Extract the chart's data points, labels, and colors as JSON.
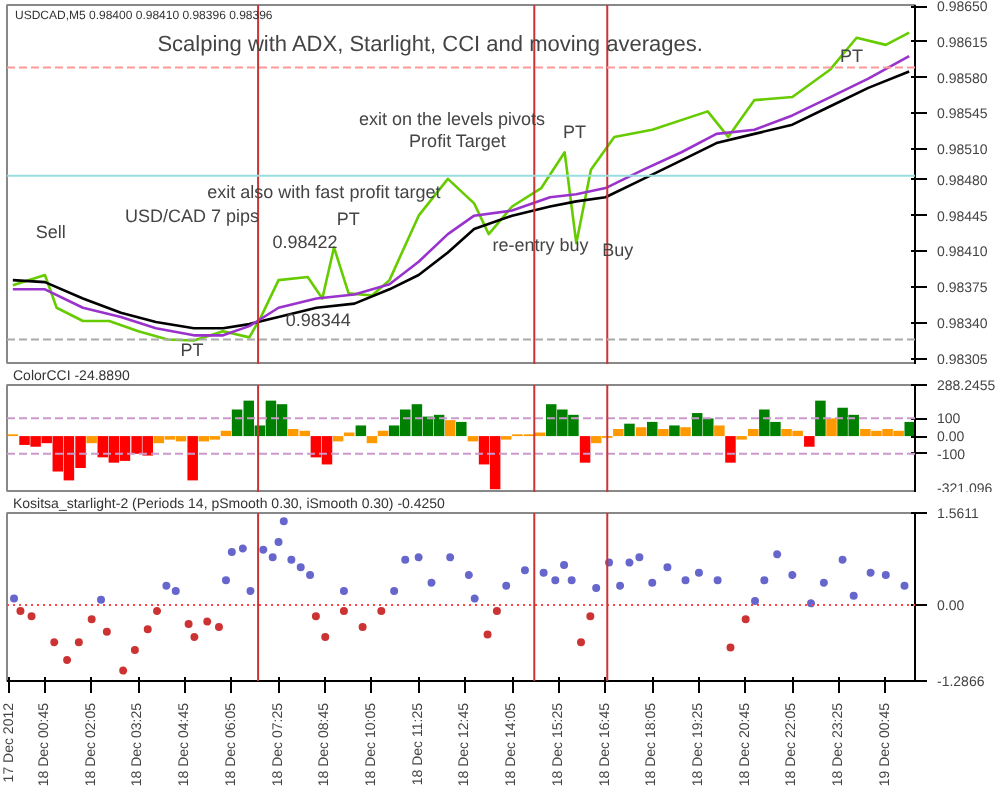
{
  "chart_data": [
    {
      "type": "line",
      "title": "Scalping with ADX, Starlight,  CCI and moving averages.",
      "xlim": [
        "2012-12-17T23:40",
        "2012-12-19T01:35"
      ],
      "ylim": [
        0.98299,
        0.98651
      ],
      "yticks": [
        {
          "value": 0.9865,
          "label": "0.98650"
        },
        0.98615,
        {
          "value": 0.9858,
          "label": "0.98580"
        },
        0.98545,
        {
          "value": 0.9851,
          "label": "0.98510"
        },
        {
          "value": 0.9848,
          "label": "0.98480"
        },
        0.98445,
        {
          "value": 0.9841,
          "label": "0.98410"
        },
        0.98375,
        {
          "value": 0.9834,
          "label": "0.98340"
        },
        0.98305
      ],
      "tick_labels": "y",
      "series": [
        {
          "color": "#66cc00",
          "x": [
            "2012-12-17T23:50",
            "2012-12-18T00:45",
            "2012-12-18T01:05",
            "2012-12-18T01:50",
            "2012-12-18T02:35",
            "2012-12-18T03:25",
            "2012-12-18T04:15",
            "2012-12-18T05:00",
            "2012-12-18T05:50",
            "2012-12-18T06:35",
            "2012-12-18T06:55",
            "2012-12-18T07:25",
            "2012-12-18T08:15",
            "2012-12-18T08:40",
            "2012-12-18T09:00",
            "2012-12-18T09:25",
            "2012-12-18T10:05",
            "2012-12-18T10:35",
            "2012-12-18T11:25",
            "2012-12-18T12:15",
            "2012-12-18T13:00",
            "2012-12-18T13:25",
            "2012-12-18T14:05",
            "2012-12-18T14:55",
            "2012-12-18T15:35",
            "2012-12-18T15:55",
            "2012-12-18T16:20",
            "2012-12-18T17:00",
            "2012-12-18T18:05",
            "2012-12-18T19:40",
            "2012-12-18T20:15",
            "2012-12-18T21:00",
            "2012-12-18T22:05",
            "2012-12-18T23:10",
            "2012-12-18T23:55",
            "2012-12-19T00:45",
            "2012-12-19T01:25"
          ],
          "values": [
            0.98377,
            0.98387,
            0.98355,
            0.98342,
            0.98342,
            0.98332,
            0.98324,
            0.98323,
            0.98332,
            0.98326,
            0.98346,
            0.98382,
            0.98385,
            0.98364,
            0.98414,
            0.98369,
            0.98367,
            0.98382,
            0.98445,
            0.98481,
            0.98457,
            0.98427,
            0.98454,
            0.98472,
            0.98507,
            0.98418,
            0.9849,
            0.98522,
            0.98529,
            0.98547,
            0.98522,
            0.98558,
            0.98561,
            0.98588,
            0.98619,
            0.98612,
            0.98624
          ]
        },
        {
          "color": "#000000",
          "x": [
            "2012-12-17T23:50",
            "2012-12-18T00:45",
            "2012-12-18T01:50",
            "2012-12-18T02:55",
            "2012-12-18T03:55",
            "2012-12-18T05:00",
            "2012-12-18T05:50",
            "2012-12-18T06:35",
            "2012-12-18T07:25",
            "2012-12-18T08:30",
            "2012-12-18T09:35",
            "2012-12-18T10:35",
            "2012-12-18T11:25",
            "2012-12-18T12:15",
            "2012-12-18T13:00",
            "2012-12-18T14:05",
            "2012-12-18T15:10",
            "2012-12-18T15:55",
            "2012-12-18T16:45",
            "2012-12-18T17:50",
            "2012-12-18T18:55",
            "2012-12-18T19:55",
            "2012-12-18T21:00",
            "2012-12-18T22:05",
            "2012-12-18T23:10",
            "2012-12-19T00:15",
            "2012-12-19T01:25"
          ],
          "values": [
            0.98382,
            0.9838,
            0.98364,
            0.9835,
            0.98341,
            0.98335,
            0.98335,
            0.98339,
            0.98346,
            0.98355,
            0.98359,
            0.98373,
            0.98387,
            0.98409,
            0.98432,
            0.98445,
            0.98454,
            0.98459,
            0.98463,
            0.98481,
            0.98499,
            0.98516,
            0.98525,
            0.98534,
            0.98552,
            0.9857,
            0.98586
          ]
        },
        {
          "color": "#9933cc",
          "x": [
            "2012-12-17T23:50",
            "2012-12-18T00:45",
            "2012-12-18T01:50",
            "2012-12-18T02:55",
            "2012-12-18T03:55",
            "2012-12-18T05:00",
            "2012-12-18T05:50",
            "2012-12-18T06:35",
            "2012-12-18T07:25",
            "2012-12-18T08:30",
            "2012-12-18T09:35",
            "2012-12-18T10:35",
            "2012-12-18T11:25",
            "2012-12-18T12:15",
            "2012-12-18T13:00",
            "2012-12-18T14:05",
            "2012-12-18T15:10",
            "2012-12-18T15:55",
            "2012-12-18T16:45",
            "2012-12-18T17:50",
            "2012-12-18T18:55",
            "2012-12-18T19:55",
            "2012-12-18T21:00",
            "2012-12-18T22:05",
            "2012-12-18T23:10",
            "2012-12-19T00:15",
            "2012-12-19T01:25"
          ],
          "values": [
            0.98373,
            0.98373,
            0.98355,
            0.98346,
            0.98335,
            0.98328,
            0.98328,
            0.98337,
            0.98355,
            0.98364,
            0.98368,
            0.98378,
            0.984,
            0.98427,
            0.98445,
            0.9845,
            0.98463,
            0.98466,
            0.98472,
            0.9849,
            0.98507,
            0.98525,
            0.98529,
            0.98543,
            0.98561,
            0.98579,
            0.98601
          ]
        }
      ],
      "ref_lines": [
        {
          "axis": "x",
          "value": "2012-12-18T06:50",
          "color": "#cc3333"
        },
        {
          "axis": "x",
          "value": "2012-12-18T14:43",
          "color": "#cc3333"
        },
        {
          "axis": "x",
          "value": "2012-12-18T16:48",
          "color": "#cc3333"
        },
        {
          "axis": "y",
          "value": 0.9859,
          "color": "#ff9999",
          "line_style": "dashed"
        },
        {
          "axis": "y",
          "value": 0.98484,
          "color": "#99dddd"
        },
        {
          "axis": "y",
          "value": 0.98324,
          "color": "#aaaaaa",
          "line_style": "dashed"
        }
      ],
      "annotations": [
        "USDCAD,M5 0.98400 0.98410 0.98396 0.98396",
        "Sell",
        "PT",
        "USD/CAD 7 pips",
        "0.98422",
        "0.98344",
        "PT",
        "exit also with fast profit target",
        "exit on the levels pivots",
        "Profit Target",
        "PT",
        "re-entry buy",
        "Buy",
        "PT"
      ]
    },
    {
      "type": "bar",
      "title": "ColorCCI -24.8890",
      "xlim": [
        "2012-12-17T23:40",
        "2012-12-19T01:35"
      ],
      "ylim": [
        -321.096,
        288.2455
      ],
      "yticks": [
        288.2455,
        100,
        {
          "value": 0,
          "label": "0.00"
        },
        -100,
        -321.096
      ],
      "tick_labels": "y",
      "x": [
        "2012-12-17T23:50",
        "2012-12-18T00:10",
        "2012-12-18T00:29",
        "2012-12-18T00:48",
        "2012-12-18T01:07",
        "2012-12-18T01:26",
        "2012-12-18T01:46",
        "2012-12-18T02:05",
        "2012-12-18T02:24",
        "2012-12-18T02:43",
        "2012-12-18T03:02",
        "2012-12-18T03:22",
        "2012-12-18T03:41",
        "2012-12-18T04:00",
        "2012-12-18T04:19",
        "2012-12-18T04:38",
        "2012-12-18T04:58",
        "2012-12-18T05:17",
        "2012-12-18T05:36",
        "2012-12-18T05:55",
        "2012-12-18T06:14",
        "2012-12-18T06:34",
        "2012-12-18T06:53",
        "2012-12-18T07:12",
        "2012-12-18T07:31",
        "2012-12-18T07:50",
        "2012-12-18T08:10",
        "2012-12-18T08:29",
        "2012-12-18T08:48",
        "2012-12-18T09:07",
        "2012-12-18T09:26",
        "2012-12-18T09:46",
        "2012-12-18T10:05",
        "2012-12-18T10:24",
        "2012-12-18T10:43",
        "2012-12-18T11:02",
        "2012-12-18T11:22",
        "2012-12-18T11:41",
        "2012-12-18T12:00",
        "2012-12-18T12:19",
        "2012-12-18T12:38",
        "2012-12-18T12:58",
        "2012-12-18T13:17",
        "2012-12-18T13:36",
        "2012-12-18T13:55",
        "2012-12-18T14:14",
        "2012-12-18T14:34",
        "2012-12-18T14:53",
        "2012-12-18T15:12",
        "2012-12-18T15:31",
        "2012-12-18T15:50",
        "2012-12-18T16:10",
        "2012-12-18T16:29",
        "2012-12-18T16:48",
        "2012-12-18T17:07",
        "2012-12-18T17:26",
        "2012-12-18T17:46",
        "2012-12-18T18:05",
        "2012-12-18T18:24",
        "2012-12-18T18:43",
        "2012-12-18T19:02",
        "2012-12-18T19:22",
        "2012-12-18T19:41",
        "2012-12-18T20:00",
        "2012-12-18T20:19",
        "2012-12-18T20:38",
        "2012-12-18T20:58",
        "2012-12-18T21:17",
        "2012-12-18T21:36",
        "2012-12-18T21:55",
        "2012-12-18T22:14",
        "2012-12-18T22:34",
        "2012-12-18T22:53",
        "2012-12-18T23:12",
        "2012-12-18T23:31",
        "2012-12-18T23:50",
        "2012-12-19T00:10",
        "2012-12-19T00:29",
        "2012-12-19T00:48",
        "2012-12-19T01:07",
        "2012-12-19T01:26"
      ],
      "values": [
        10,
        -50,
        -60,
        -40,
        -200,
        -250,
        -180,
        -40,
        -120,
        -150,
        -140,
        -100,
        -110,
        -40,
        -20,
        -30,
        -250,
        -30,
        -20,
        30,
        150,
        200,
        60,
        200,
        180,
        40,
        30,
        -120,
        -160,
        -30,
        20,
        60,
        -40,
        30,
        60,
        150,
        180,
        110,
        120,
        90,
        80,
        -30,
        -160,
        -300,
        -20,
        10,
        10,
        20,
        180,
        150,
        120,
        -150,
        -40,
        -10,
        40,
        70,
        50,
        80,
        40,
        60,
        50,
        130,
        100,
        60,
        -150,
        -20,
        40,
        150,
        80,
        40,
        30,
        -60,
        200,
        100,
        160,
        120,
        40,
        30,
        40,
        30,
        80
      ],
      "colors": [
        "#ff9900",
        "#ff0000",
        "#ff0000",
        "#ff0000",
        "#ff0000",
        "#ff0000",
        "#ff0000",
        "#ff9900",
        "#ff0000",
        "#ff0000",
        "#ff0000",
        "#ff0000",
        "#ff0000",
        "#ff9900",
        "#ff9900",
        "#ff9900",
        "#ff0000",
        "#ff9900",
        "#ff9900",
        "#ff9900",
        "#008000",
        "#008000",
        "#008000",
        "#008000",
        "#008000",
        "#ff9900",
        "#ff9900",
        "#ff0000",
        "#ff0000",
        "#ff9900",
        "#ff9900",
        "#008000",
        "#ff9900",
        "#ff9900",
        "#008000",
        "#008000",
        "#008000",
        "#008000",
        "#008000",
        "#ff9900",
        "#008000",
        "#ff9900",
        "#ff0000",
        "#ff0000",
        "#ff9900",
        "#ff9900",
        "#ff9900",
        "#ff9900",
        "#008000",
        "#008000",
        "#008000",
        "#ff0000",
        "#ff9900",
        "#ff9900",
        "#ff9900",
        "#008000",
        "#ff9900",
        "#008000",
        "#ff9900",
        "#008000",
        "#ff9900",
        "#008000",
        "#008000",
        "#ff9900",
        "#ff0000",
        "#ff9900",
        "#ff9900",
        "#008000",
        "#008000",
        "#ff9900",
        "#ff9900",
        "#ff0000",
        "#008000",
        "#ff9900",
        "#008000",
        "#008000",
        "#ff9900",
        "#ff9900",
        "#ff9900",
        "#ff9900",
        "#008000"
      ],
      "ref_lines": [
        {
          "axis": "y",
          "value": 100,
          "color": "#cc99cc",
          "line_style": "dashed"
        },
        {
          "axis": "y",
          "value": -100,
          "color": "#cc99cc",
          "line_style": "dashed"
        },
        {
          "axis": "x",
          "value": "2012-12-18T06:50",
          "color": "#cc3333"
        },
        {
          "axis": "x",
          "value": "2012-12-18T14:43",
          "color": "#cc3333"
        },
        {
          "axis": "x",
          "value": "2012-12-18T16:48",
          "color": "#cc3333"
        }
      ]
    },
    {
      "type": "scatter",
      "title": "Kositsa_starlight-2 (Periods 14, pSmooth 0.30, iSmooth 0.30) -0.4250",
      "marker": "circle",
      "xlim": [
        "2012-12-17T23:40",
        "2012-12-19T01:35"
      ],
      "ylim": [
        -1.2866,
        1.5611
      ],
      "yticks": [
        1.5611,
        {
          "value": 0,
          "label": "0.00"
        },
        -1.2866
      ],
      "xticks": [
        {
          "value": "2012-12-17T23:45",
          "label": "17 Dec 2012"
        },
        {
          "value": "2012-12-18T00:45",
          "label": "18 Dec 00:45"
        },
        {
          "value": "2012-12-18T02:05",
          "label": "18 Dec 02:05"
        },
        {
          "value": "2012-12-18T03:25",
          "label": "18 Dec 03:25"
        },
        {
          "value": "2012-12-18T04:45",
          "label": "18 Dec 04:45"
        },
        {
          "value": "2012-12-18T06:05",
          "label": "18 Dec 06:05"
        },
        {
          "value": "2012-12-18T07:25",
          "label": "18 Dec 07:25"
        },
        {
          "value": "2012-12-18T08:45",
          "label": "18 Dec 08:45"
        },
        {
          "value": "2012-12-18T10:05",
          "label": "18 Dec 10:05"
        },
        {
          "value": "2012-12-18T11:25",
          "label": "18 Dec 11:25"
        },
        {
          "value": "2012-12-18T12:45",
          "label": "18 Dec 12:45"
        },
        {
          "value": "2012-12-18T14:05",
          "label": "18 Dec 14:05"
        },
        {
          "value": "2012-12-18T15:25",
          "label": "18 Dec 15:25"
        },
        {
          "value": "2012-12-18T16:45",
          "label": "18 Dec 16:45"
        },
        {
          "value": "2012-12-18T18:05",
          "label": "18 Dec 18:05"
        },
        {
          "value": "2012-12-18T19:25",
          "label": "18 Dec 19:25"
        },
        {
          "value": "2012-12-18T20:45",
          "label": "18 Dec 20:45"
        },
        {
          "value": "2012-12-18T22:05",
          "label": "18 Dec 22:05"
        },
        {
          "value": "2012-12-18T23:25",
          "label": "18 Dec 23:25"
        },
        {
          "value": "2012-12-19T00:45",
          "label": "19 Dec 00:45"
        }
      ],
      "series": [
        {
          "color": "#6666cc",
          "x": [
            "2012-12-17T23:52",
            "2012-12-18T02:21",
            "2012-12-18T04:13",
            "2012-12-18T04:29",
            "2012-12-18T05:55",
            "2012-12-18T06:05",
            "2012-12-18T06:24",
            "2012-12-18T06:37",
            "2012-12-18T06:59",
            "2012-12-18T07:15",
            "2012-12-18T07:25",
            "2012-12-18T07:34",
            "2012-12-18T07:47",
            "2012-12-18T08:03",
            "2012-12-18T08:19",
            "2012-12-18T09:17",
            "2012-12-18T10:43",
            "2012-12-18T11:02",
            "2012-12-18T11:25",
            "2012-12-18T11:47",
            "2012-12-18T12:19",
            "2012-12-18T12:51",
            "2012-12-18T13:01",
            "2012-12-18T13:55",
            "2012-12-18T14:27",
            "2012-12-18T14:59",
            "2012-12-18T15:19",
            "2012-12-18T15:34",
            "2012-12-18T15:47",
            "2012-12-18T16:29",
            "2012-12-18T16:51",
            "2012-12-18T17:10",
            "2012-12-18T17:26",
            "2012-12-18T17:43",
            "2012-12-18T18:05",
            "2012-12-18T18:31",
            "2012-12-18T19:02",
            "2012-12-18T19:25",
            "2012-12-18T19:57",
            "2012-12-18T21:01",
            "2012-12-18T21:17",
            "2012-12-18T21:39",
            "2012-12-18T22:05",
            "2012-12-18T22:37",
            "2012-12-18T22:59",
            "2012-12-18T23:31",
            "2012-12-18T23:50",
            "2012-12-19T00:19",
            "2012-12-19T00:45",
            "2012-12-19T01:17"
          ],
          "values": [
            0.11,
            0.09,
            0.33,
            0.24,
            0.42,
            0.9,
            0.96,
            0.24,
            0.94,
            0.81,
            1.07,
            1.42,
            0.77,
            0.64,
            0.51,
            0.24,
            0.24,
            0.77,
            0.81,
            0.38,
            0.81,
            0.51,
            0.11,
            0.33,
            0.59,
            0.55,
            0.42,
            0.68,
            0.42,
            0.29,
            0.72,
            0.33,
            0.72,
            0.81,
            0.38,
            0.64,
            0.42,
            0.55,
            0.42,
            0.07,
            0.42,
            0.86,
            0.51,
            0.03,
            0.38,
            0.77,
            0.16,
            0.55,
            0.51,
            0.33
          ]
        },
        {
          "color": "#cc3333",
          "x": [
            "2012-12-18T00:03",
            "2012-12-18T00:22",
            "2012-12-18T01:01",
            "2012-12-18T01:23",
            "2012-12-18T01:43",
            "2012-12-18T02:05",
            "2012-12-18T02:31",
            "2012-12-18T02:59",
            "2012-12-18T03:19",
            "2012-12-18T03:41",
            "2012-12-18T03:57",
            "2012-12-18T04:51",
            "2012-12-18T05:01",
            "2012-12-18T05:23",
            "2012-12-18T05:43",
            "2012-12-18T08:29",
            "2012-12-18T08:45",
            "2012-12-18T09:17",
            "2012-12-18T09:49",
            "2012-12-18T10:21",
            "2012-12-18T13:23",
            "2012-12-18T13:39",
            "2012-12-18T16:03",
            "2012-12-18T16:19",
            "2012-12-18T20:19",
            "2012-12-18T20:45"
          ],
          "values": [
            -0.1,
            -0.19,
            -0.63,
            -0.93,
            -0.63,
            -0.24,
            -0.45,
            -1.11,
            -0.76,
            -0.41,
            -0.1,
            -0.32,
            -0.54,
            -0.28,
            -0.37,
            -0.19,
            -0.54,
            -0.1,
            -0.37,
            -0.1,
            -0.5,
            -0.1,
            -0.63,
            -0.19,
            -0.72,
            -0.24
          ]
        }
      ],
      "ref_lines": [
        {
          "axis": "y",
          "value": 0,
          "color": "#ff4444",
          "line_style": "dotted"
        },
        {
          "axis": "x",
          "value": "2012-12-18T06:50",
          "color": "#cc3333"
        },
        {
          "axis": "x",
          "value": "2012-12-18T14:43",
          "color": "#cc3333"
        },
        {
          "axis": "x",
          "value": "2012-12-18T16:48",
          "color": "#cc3333"
        }
      ]
    }
  ]
}
